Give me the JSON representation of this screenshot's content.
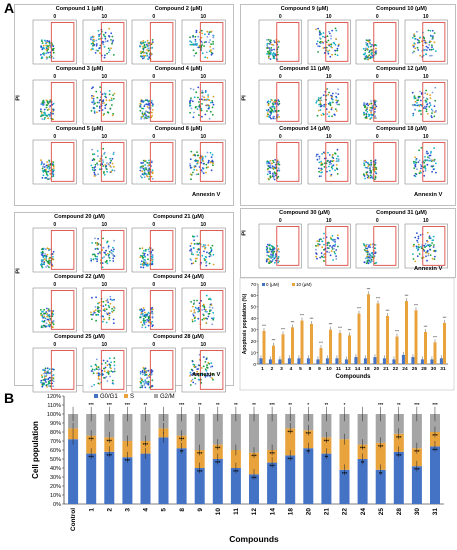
{
  "figure": {
    "label_a": "A",
    "label_b": "B",
    "axis_annexin": "Annexin V",
    "axis_pi": "PI",
    "dose_low": "0",
    "dose_high": "10",
    "flow_groups": [
      {
        "titles": [
          "Compound 1 (μM)",
          "Compound 2 (μM)",
          "Compound 3 (μM)",
          "Compound 4 (μM)",
          "Compound 5 (μM)",
          "Compound 8 (μM)"
        ]
      },
      {
        "titles": [
          "Compound 9 (μM)",
          "Compound 10 (μM)",
          "Compound 11 (μM)",
          "Compound 12 (μM)",
          "Compound 14 (μM)",
          "Compound 18 (μM)"
        ]
      },
      {
        "titles": [
          "Compound 20 (μM)",
          "Compound 21 (μM)",
          "Compound 22 (μM)",
          "Compound 24 (μM)",
          "Compound 25 (μM)",
          "Compound 28 (μM)"
        ]
      },
      {
        "titles": [
          "Compound 30 (μM)",
          "Compound 31 (μM)"
        ]
      }
    ]
  },
  "chart_data": [
    {
      "type": "bar",
      "ylabel": "Apoptosis population (%)",
      "xlabel": "Compounds",
      "ylim": [
        0,
        70
      ],
      "yticks": [
        0,
        10,
        20,
        30,
        40,
        50,
        60,
        70
      ],
      "legend": "top-left",
      "categories": [
        "1",
        "2",
        "3",
        "4",
        "5",
        "8",
        "9",
        "10",
        "11",
        "12",
        "14",
        "18",
        "20",
        "21",
        "22",
        "24",
        "25",
        "28",
        "30",
        "31"
      ],
      "series": [
        {
          "name": "0 (μM)",
          "color": "#4472c4",
          "values": [
            5,
            4,
            4,
            5,
            5,
            5,
            4,
            5,
            5,
            4,
            6,
            5,
            6,
            5,
            4,
            8,
            6,
            4,
            4,
            5
          ]
        },
        {
          "name": "10 (μM)",
          "color": "#e8a33d",
          "values": [
            29,
            16,
            26,
            32,
            38,
            35,
            14,
            30,
            27,
            25,
            44,
            61,
            53,
            42,
            24,
            55,
            47,
            28,
            19,
            36
          ]
        }
      ],
      "sig_marks": [
        "***",
        "***",
        "***",
        "***",
        "***",
        "***",
        "***",
        "***",
        "***",
        "***",
        "***",
        "***",
        "***",
        "***",
        "***",
        "***",
        "***",
        "***",
        "***",
        "***"
      ]
    },
    {
      "type": "bar",
      "stacked": true,
      "ylabel": "Cell population",
      "xlabel": "Compounds",
      "ylim": [
        0,
        120
      ],
      "yticks": [
        "0%",
        "10%",
        "20%",
        "30%",
        "40%",
        "50%",
        "60%",
        "70%",
        "80%",
        "90%",
        "100%",
        "110%",
        "120%"
      ],
      "legend": "top",
      "categories": [
        "Control",
        "1",
        "2",
        "3",
        "4",
        "5",
        "8",
        "9",
        "10",
        "11",
        "12",
        "14",
        "18",
        "20",
        "21",
        "22",
        "24",
        "25",
        "28",
        "30",
        "31"
      ],
      "series": [
        {
          "name": "G0/G1",
          "color": "#4472c4",
          "values": [
            72,
            56,
            58,
            52,
            56,
            74,
            62,
            40,
            50,
            40,
            33,
            46,
            54,
            62,
            56,
            38,
            50,
            38,
            58,
            42,
            64
          ]
        },
        {
          "name": "S",
          "color": "#e8a33d",
          "values": [
            12,
            20,
            16,
            18,
            14,
            10,
            14,
            20,
            16,
            20,
            24,
            14,
            30,
            20,
            18,
            34,
            16,
            30,
            20,
            20,
            16
          ]
        },
        {
          "name": "G2/M",
          "color": "#a5a5a5",
          "values": [
            16,
            24,
            26,
            30,
            30,
            16,
            24,
            40,
            34,
            40,
            43,
            40,
            16,
            18,
            26,
            28,
            34,
            32,
            22,
            38,
            20
          ]
        }
      ],
      "top_sig": [
        "",
        "***",
        "***",
        "***",
        "**",
        "",
        "***",
        "**",
        "**",
        "**",
        "**",
        "***",
        "**",
        "*",
        "**",
        "*",
        "",
        "***",
        "**",
        "***",
        "***"
      ],
      "mid_sig": [
        "",
        "***",
        "***",
        "",
        "***",
        "",
        "***",
        "***",
        "***",
        "",
        "***",
        "***",
        "***",
        "***",
        "***",
        "",
        "***",
        "***",
        "***",
        "***",
        "***"
      ],
      "low_sig": [
        "",
        "***",
        "***",
        "***",
        "",
        "",
        "**",
        "***",
        "***",
        "***",
        "***",
        "***",
        "***",
        "**",
        "**",
        "***",
        "**",
        "**",
        "***",
        "***",
        "***"
      ]
    }
  ]
}
